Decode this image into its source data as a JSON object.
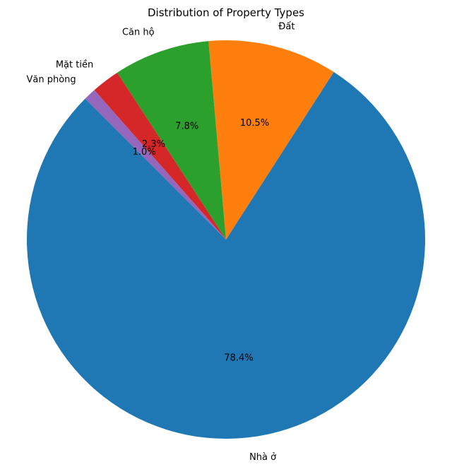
{
  "chart_data": {
    "type": "pie",
    "title": "Distribution of Property Types",
    "start_angle_deg": 135,
    "direction": "counterclockwise",
    "slices": [
      {
        "label": "Nhà ở",
        "value": 78.4,
        "pct_text": "78.4%",
        "color": "#1f77b4"
      },
      {
        "label": "Đất",
        "value": 10.5,
        "pct_text": "10.5%",
        "color": "#ff7f0e"
      },
      {
        "label": "Căn hộ",
        "value": 7.8,
        "pct_text": "7.8%",
        "color": "#2ca02c"
      },
      {
        "label": "Mặt tiền",
        "value": 2.3,
        "pct_text": "2.3%",
        "color": "#d62728"
      },
      {
        "label": "Văn phòng",
        "value": 1.0,
        "pct_text": "1.0%",
        "color": "#9467bd"
      }
    ]
  }
}
